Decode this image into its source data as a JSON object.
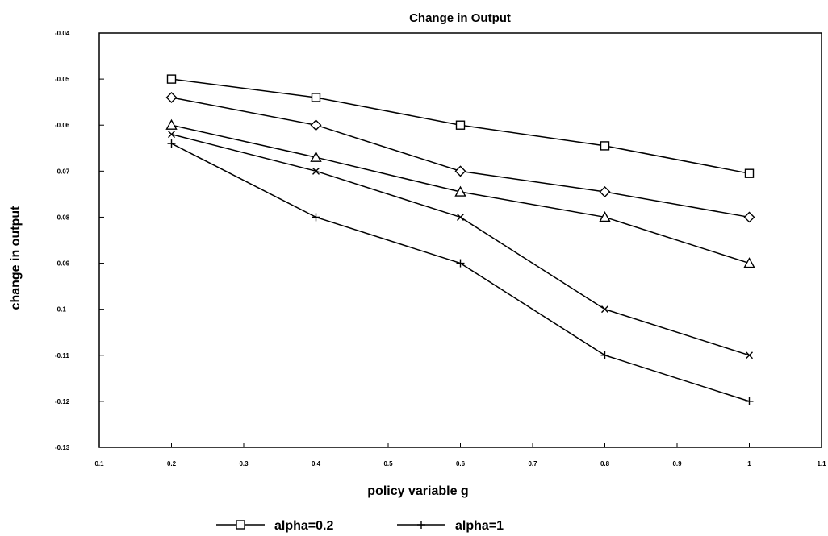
{
  "chart_data": {
    "type": "line",
    "title": "Change in Output",
    "xlabel": "policy variable g",
    "ylabel": "change in output",
    "xlim": [
      0.1,
      1.1
    ],
    "ylim": [
      -0.13,
      -0.04
    ],
    "x_ticks": [
      "0.1",
      "0.2",
      "0.3",
      "0.4",
      "0.5",
      "0.6",
      "0.7",
      "0.8",
      "0.9",
      "1",
      "1.1"
    ],
    "y_ticks": [
      "-0.04",
      "-0.05",
      "-0.06",
      "-0.07",
      "-0.08",
      "-0.09",
      "-0.1",
      "-0.11",
      "-0.12",
      "-0.13"
    ],
    "grid": false,
    "legend_position": "bottom",
    "x": [
      0.2,
      0.4,
      0.6,
      0.8,
      1.0
    ],
    "series": [
      {
        "name": "alpha=0.2",
        "marker": "square",
        "values": [
          -0.05,
          -0.054,
          -0.06,
          -0.0645,
          -0.0705
        ]
      },
      {
        "marker": "diamond",
        "values": [
          -0.054,
          -0.06,
          -0.07,
          -0.0745,
          -0.08
        ]
      },
      {
        "marker": "triangle",
        "values": [
          -0.06,
          -0.067,
          -0.0745,
          -0.08,
          -0.09
        ]
      },
      {
        "marker": "x",
        "values": [
          -0.062,
          -0.07,
          -0.08,
          -0.1,
          -0.11
        ]
      },
      {
        "name": "alpha=1",
        "marker": "plus",
        "values": [
          -0.064,
          -0.08,
          -0.09,
          -0.11,
          -0.12
        ]
      }
    ]
  }
}
